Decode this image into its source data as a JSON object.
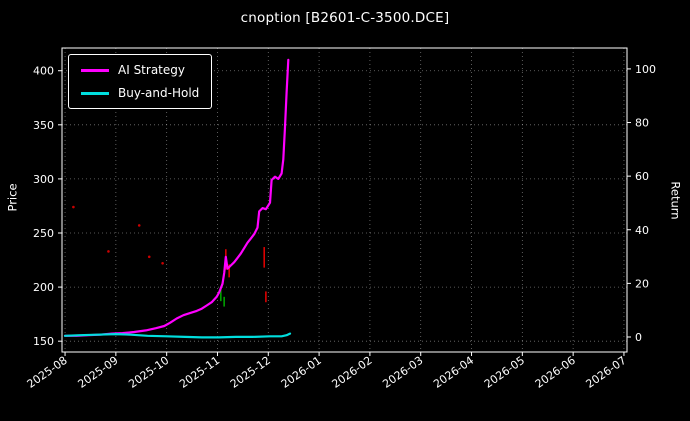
{
  "chart_data": {
    "type": "line",
    "title": "cnoption [B2601-C-3500.DCE]",
    "ylabel_left": "Price",
    "ylabel_right": "Return",
    "background": "#000000",
    "text_color": "#ffffff",
    "grid": true,
    "legend_position": "upper left",
    "x_tick_labels": [
      "2025-08",
      "2025-09",
      "2025-10",
      "2025-11",
      "2025-12",
      "2026-01",
      "2026-02",
      "2026-03",
      "2026-04",
      "2026-05",
      "2026-06",
      "2026-07"
    ],
    "ylim_left": [
      140,
      421
    ],
    "left_ticks": [
      150,
      200,
      250,
      300,
      350,
      400
    ],
    "ylim_right": [
      -5.6,
      107.8
    ],
    "right_ticks": [
      0,
      20,
      40,
      60,
      80,
      100
    ],
    "series": [
      {
        "name": "AI Strategy",
        "color": "#ff00ff",
        "points": [
          [
            "2025-08-01",
            155
          ],
          [
            "2025-08-08",
            155
          ],
          [
            "2025-08-15",
            155.5
          ],
          [
            "2025-08-22",
            156
          ],
          [
            "2025-08-29",
            157
          ],
          [
            "2025-09-05",
            157.5
          ],
          [
            "2025-09-12",
            158.5
          ],
          [
            "2025-09-19",
            160
          ],
          [
            "2025-09-25",
            162
          ],
          [
            "2025-09-30",
            164
          ],
          [
            "2025-10-03",
            167
          ],
          [
            "2025-10-07",
            171
          ],
          [
            "2025-10-11",
            174
          ],
          [
            "2025-10-15",
            176
          ],
          [
            "2025-10-19",
            178
          ],
          [
            "2025-10-22",
            180
          ],
          [
            "2025-10-25",
            183
          ],
          [
            "2025-10-28",
            186
          ],
          [
            "2025-10-31",
            191
          ],
          [
            "2025-11-02",
            195
          ],
          [
            "2025-11-04",
            203
          ],
          [
            "2025-11-05",
            213
          ],
          [
            "2025-11-06",
            228
          ],
          [
            "2025-11-07",
            217
          ],
          [
            "2025-11-09",
            220
          ],
          [
            "2025-11-11",
            223
          ],
          [
            "2025-11-13",
            227
          ],
          [
            "2025-11-15",
            231
          ],
          [
            "2025-11-17",
            236
          ],
          [
            "2025-11-19",
            241
          ],
          [
            "2025-11-21",
            245
          ],
          [
            "2025-11-23",
            249
          ],
          [
            "2025-11-25",
            255
          ],
          [
            "2025-11-26",
            270
          ],
          [
            "2025-11-28",
            273
          ],
          [
            "2025-11-30",
            272
          ],
          [
            "2025-12-02",
            278
          ],
          [
            "2025-12-03",
            299
          ],
          [
            "2025-12-05",
            302
          ],
          [
            "2025-12-07",
            300
          ],
          [
            "2025-12-09",
            305
          ],
          [
            "2025-12-10",
            318
          ],
          [
            "2025-12-11",
            348
          ],
          [
            "2025-12-12",
            380
          ],
          [
            "2025-12-13",
            410
          ]
        ]
      },
      {
        "name": "Buy-and-Hold",
        "color": "#00dede",
        "points": [
          [
            "2025-08-01",
            155
          ],
          [
            "2025-08-10",
            155.5
          ],
          [
            "2025-08-20",
            156
          ],
          [
            "2025-09-01",
            156.5
          ],
          [
            "2025-09-10",
            156
          ],
          [
            "2025-09-20",
            155
          ],
          [
            "2025-10-01",
            154.5
          ],
          [
            "2025-10-12",
            154
          ],
          [
            "2025-10-22",
            153.5
          ],
          [
            "2025-11-02",
            153.5
          ],
          [
            "2025-11-12",
            154
          ],
          [
            "2025-11-22",
            154
          ],
          [
            "2025-12-02",
            154.5
          ],
          [
            "2025-12-09",
            154.5
          ],
          [
            "2025-12-12",
            155.5
          ],
          [
            "2025-12-14",
            157
          ]
        ]
      }
    ],
    "markers": {
      "dots": [
        {
          "date": "2025-08-06",
          "price": 274,
          "color": "#cc0000"
        },
        {
          "date": "2025-08-27",
          "price": 233,
          "color": "#cc0000"
        },
        {
          "date": "2025-09-15",
          "price": 257,
          "color": "#cc0000"
        },
        {
          "date": "2025-09-21",
          "price": 228,
          "color": "#cc0000"
        },
        {
          "date": "2025-09-29",
          "price": 222,
          "color": "#cc0000"
        }
      ],
      "segments": [
        {
          "date": "2025-11-03",
          "from": 187,
          "to": 198,
          "color": "#00a000"
        },
        {
          "date": "2025-11-05",
          "from": 182,
          "to": 191,
          "color": "#00a000"
        },
        {
          "date": "2025-11-06",
          "from": 216,
          "to": 235,
          "color": "#dd0000"
        },
        {
          "date": "2025-11-08",
          "from": 209,
          "to": 221,
          "color": "#dd0000"
        },
        {
          "date": "2025-11-29",
          "from": 218,
          "to": 237,
          "color": "#dd0000"
        },
        {
          "date": "2025-11-30",
          "from": 186,
          "to": 196,
          "color": "#dd0000"
        }
      ]
    }
  }
}
